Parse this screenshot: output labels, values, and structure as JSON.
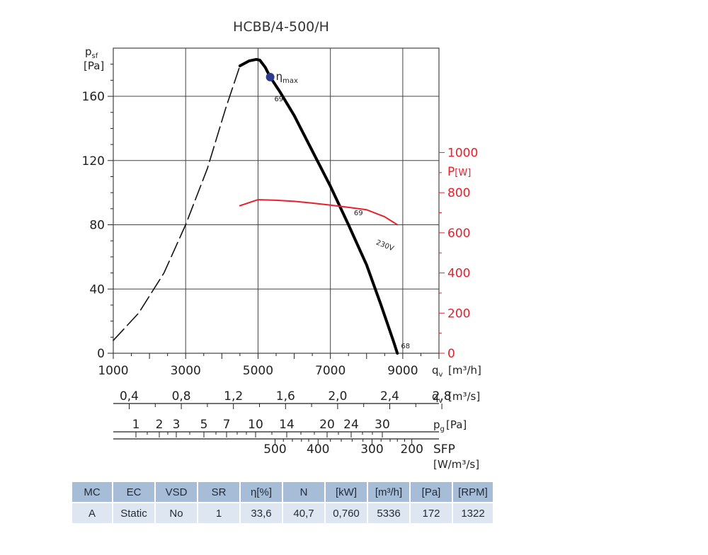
{
  "colors": {
    "curve": "#000000",
    "power": "#e8202a",
    "eta": "#2b3990",
    "grid": "#444444",
    "table_header": "#a6bcd7",
    "table_cell": "#dde6f1"
  },
  "chart_data": {
    "type": "line",
    "title": "HCBB/4-500/H",
    "x_axis": {
      "range": [
        1000,
        10000
      ],
      "ticks": [
        1000,
        3000,
        5000,
        7000,
        9000
      ],
      "label": "q",
      "label_sub": "v",
      "unit": "[m³/h]"
    },
    "y_axis_left": {
      "range": [
        0,
        190
      ],
      "ticks": [
        0,
        40,
        80,
        120,
        160
      ],
      "label": "p",
      "label_sub": "sf",
      "unit": "[Pa]"
    },
    "y_axis_right": {
      "range": [
        0,
        1520
      ],
      "ticks": [
        0,
        200,
        400,
        600,
        800,
        1000
      ],
      "label": "P",
      "unit": "[W]"
    },
    "grid": true,
    "series": [
      {
        "name": "",
        "style": "dashed",
        "x": [
          1000,
          1700,
          2400,
          3000,
          3600,
          4100,
          4500
        ],
        "y": [
          8,
          25,
          50,
          80,
          115,
          152,
          179
        ]
      },
      {
        "name": "",
        "style": "solid",
        "x": [
          4500,
          4750,
          4950,
          5050,
          5200,
          5336,
          5600,
          6000,
          6500,
          7000,
          7500,
          8000,
          8400,
          8750,
          8850
        ],
        "y": [
          179,
          182,
          183,
          182.5,
          178,
          172,
          163,
          148,
          126,
          104,
          80,
          55,
          30,
          7,
          0
        ]
      },
      {
        "name": "230V",
        "axis": "right",
        "style": "solid",
        "x": [
          4500,
          5000,
          5500,
          6000,
          6500,
          7000,
          7500,
          8000,
          8500,
          8850
        ],
        "y": [
          735,
          765,
          762,
          757,
          748,
          738,
          727,
          715,
          680,
          640
        ]
      }
    ],
    "annotations": [
      {
        "text": "69",
        "x": 5450,
        "y": 157
      },
      {
        "text": "69",
        "x": 7650,
        "y": 86
      },
      {
        "text": "68",
        "x": 8950,
        "y": 3
      },
      {
        "text": "230V",
        "x": 8250,
        "y": 68
      }
    ],
    "eta_max": {
      "label": "η",
      "label_sub": "max",
      "x": 5336,
      "y": 172
    },
    "qv_m3s": {
      "label": "q",
      "label_sub": "v",
      "unit": "[m³/s]",
      "ticks": [
        {
          "v": 0.4,
          "t": "0,4"
        },
        {
          "v": 0.8,
          "t": "0,8"
        },
        {
          "v": 1.2,
          "t": "1,2"
        },
        {
          "v": 1.6,
          "t": "1,6"
        },
        {
          "v": 2.0,
          "t": "2,0"
        },
        {
          "v": 2.4,
          "t": "2,4"
        },
        {
          "v": 2.8,
          "t": "2,8"
        }
      ]
    },
    "pg": {
      "label": "p",
      "label_sub": "g",
      "unit": "[Pa]",
      "ticks": [
        1,
        2,
        3,
        5,
        7,
        10,
        14,
        20,
        24,
        30
      ],
      "minor": [
        1.5,
        2.5,
        4,
        6,
        8,
        9,
        12,
        16,
        18,
        22,
        26,
        28
      ]
    },
    "sfp": {
      "label": "SFP",
      "unit": "[W/m³/s]",
      "ticks": [
        {
          "v": 500,
          "x": 5470
        },
        {
          "v": 400,
          "x": 6660
        },
        {
          "v": 300,
          "x": 8150
        },
        {
          "v": 200,
          "x": 9250
        }
      ],
      "minor_x": [
        5700,
        5950,
        6200,
        6400,
        7000,
        7300,
        7600,
        7900,
        8400,
        8650,
        8850,
        9050
      ]
    }
  },
  "table": {
    "headers": [
      "MC",
      "EC",
      "VSD",
      "SR",
      "η[%]",
      "N",
      "[kW]",
      "[m³/h]",
      "[Pa]",
      "[RPM]"
    ],
    "rows": [
      [
        "A",
        "Static",
        "No",
        "1",
        "33,6",
        "40,7",
        "0,760",
        "5336",
        "172",
        "1322"
      ]
    ],
    "col_widths": [
      56,
      58,
      58,
      58,
      58,
      58,
      58,
      58,
      58,
      56
    ]
  }
}
